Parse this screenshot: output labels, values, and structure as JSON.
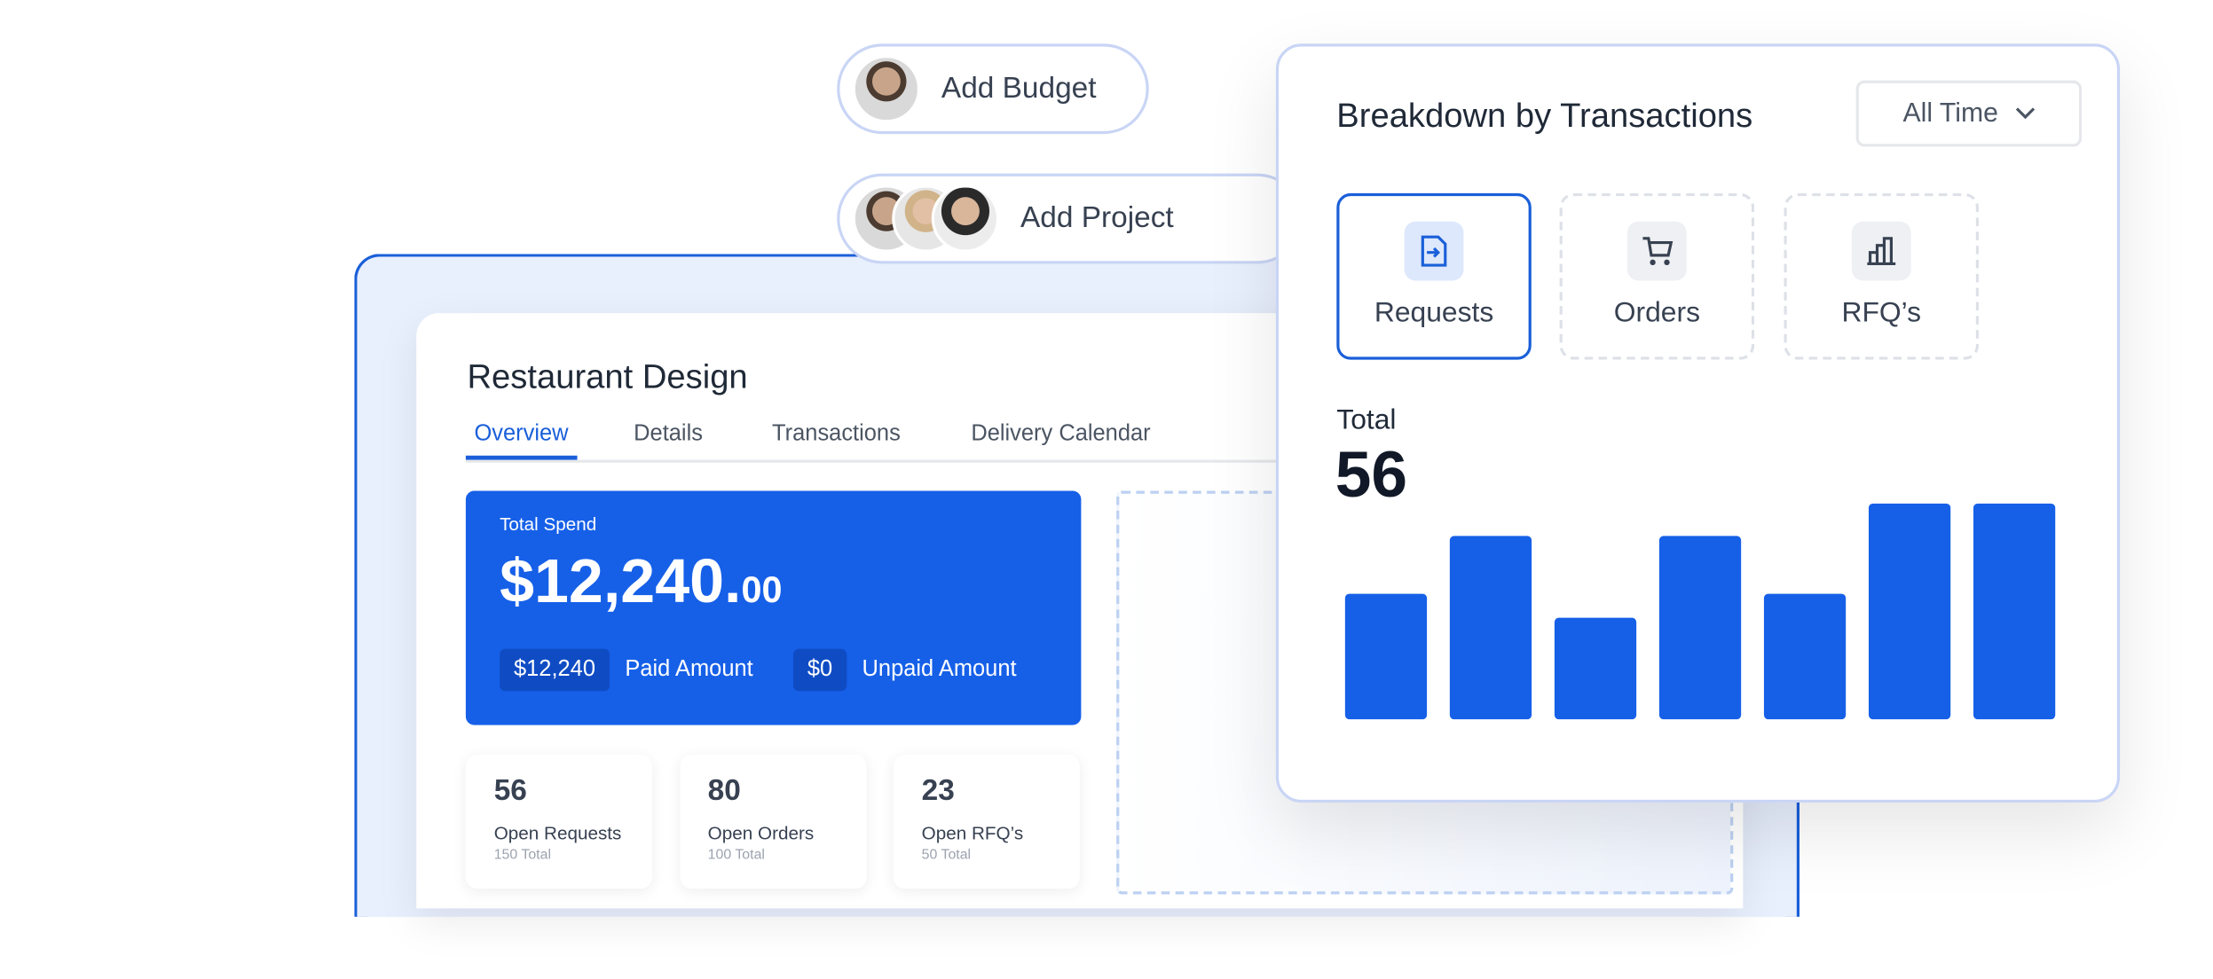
{
  "chips": [
    {
      "label": "Add Budget"
    },
    {
      "label": "Add Project"
    }
  ],
  "project": {
    "title": "Restaurant Design",
    "tabs": [
      "Overview",
      "Details",
      "Transactions",
      "Delivery Calendar"
    ],
    "spend": {
      "label": "Total Spend",
      "amount": "$12,240.",
      "cents": "00",
      "paid_value": "$12,240",
      "paid_label": "Paid Amount",
      "unpaid_value": "$0",
      "unpaid_label": "Unpaid Amount"
    },
    "stats": [
      {
        "value": 56,
        "label": "Open Requests",
        "sub": "150 Total"
      },
      {
        "value": 80,
        "label": "Open Orders",
        "sub": "100 Total"
      },
      {
        "value": 23,
        "label": "Open RFQ’s",
        "sub": "50 Total"
      }
    ]
  },
  "breakdown": {
    "title": "Breakdown by Transactions",
    "filter": "All Time",
    "types": [
      "Requests",
      "Orders",
      "RFQ’s"
    ],
    "total_label": "Total",
    "total": 56
  },
  "chart_data": {
    "type": "bar",
    "values": [
      89,
      130,
      72,
      130,
      89,
      153,
      153
    ],
    "ylim": [
      0,
      160
    ],
    "color": "#1660e8"
  }
}
